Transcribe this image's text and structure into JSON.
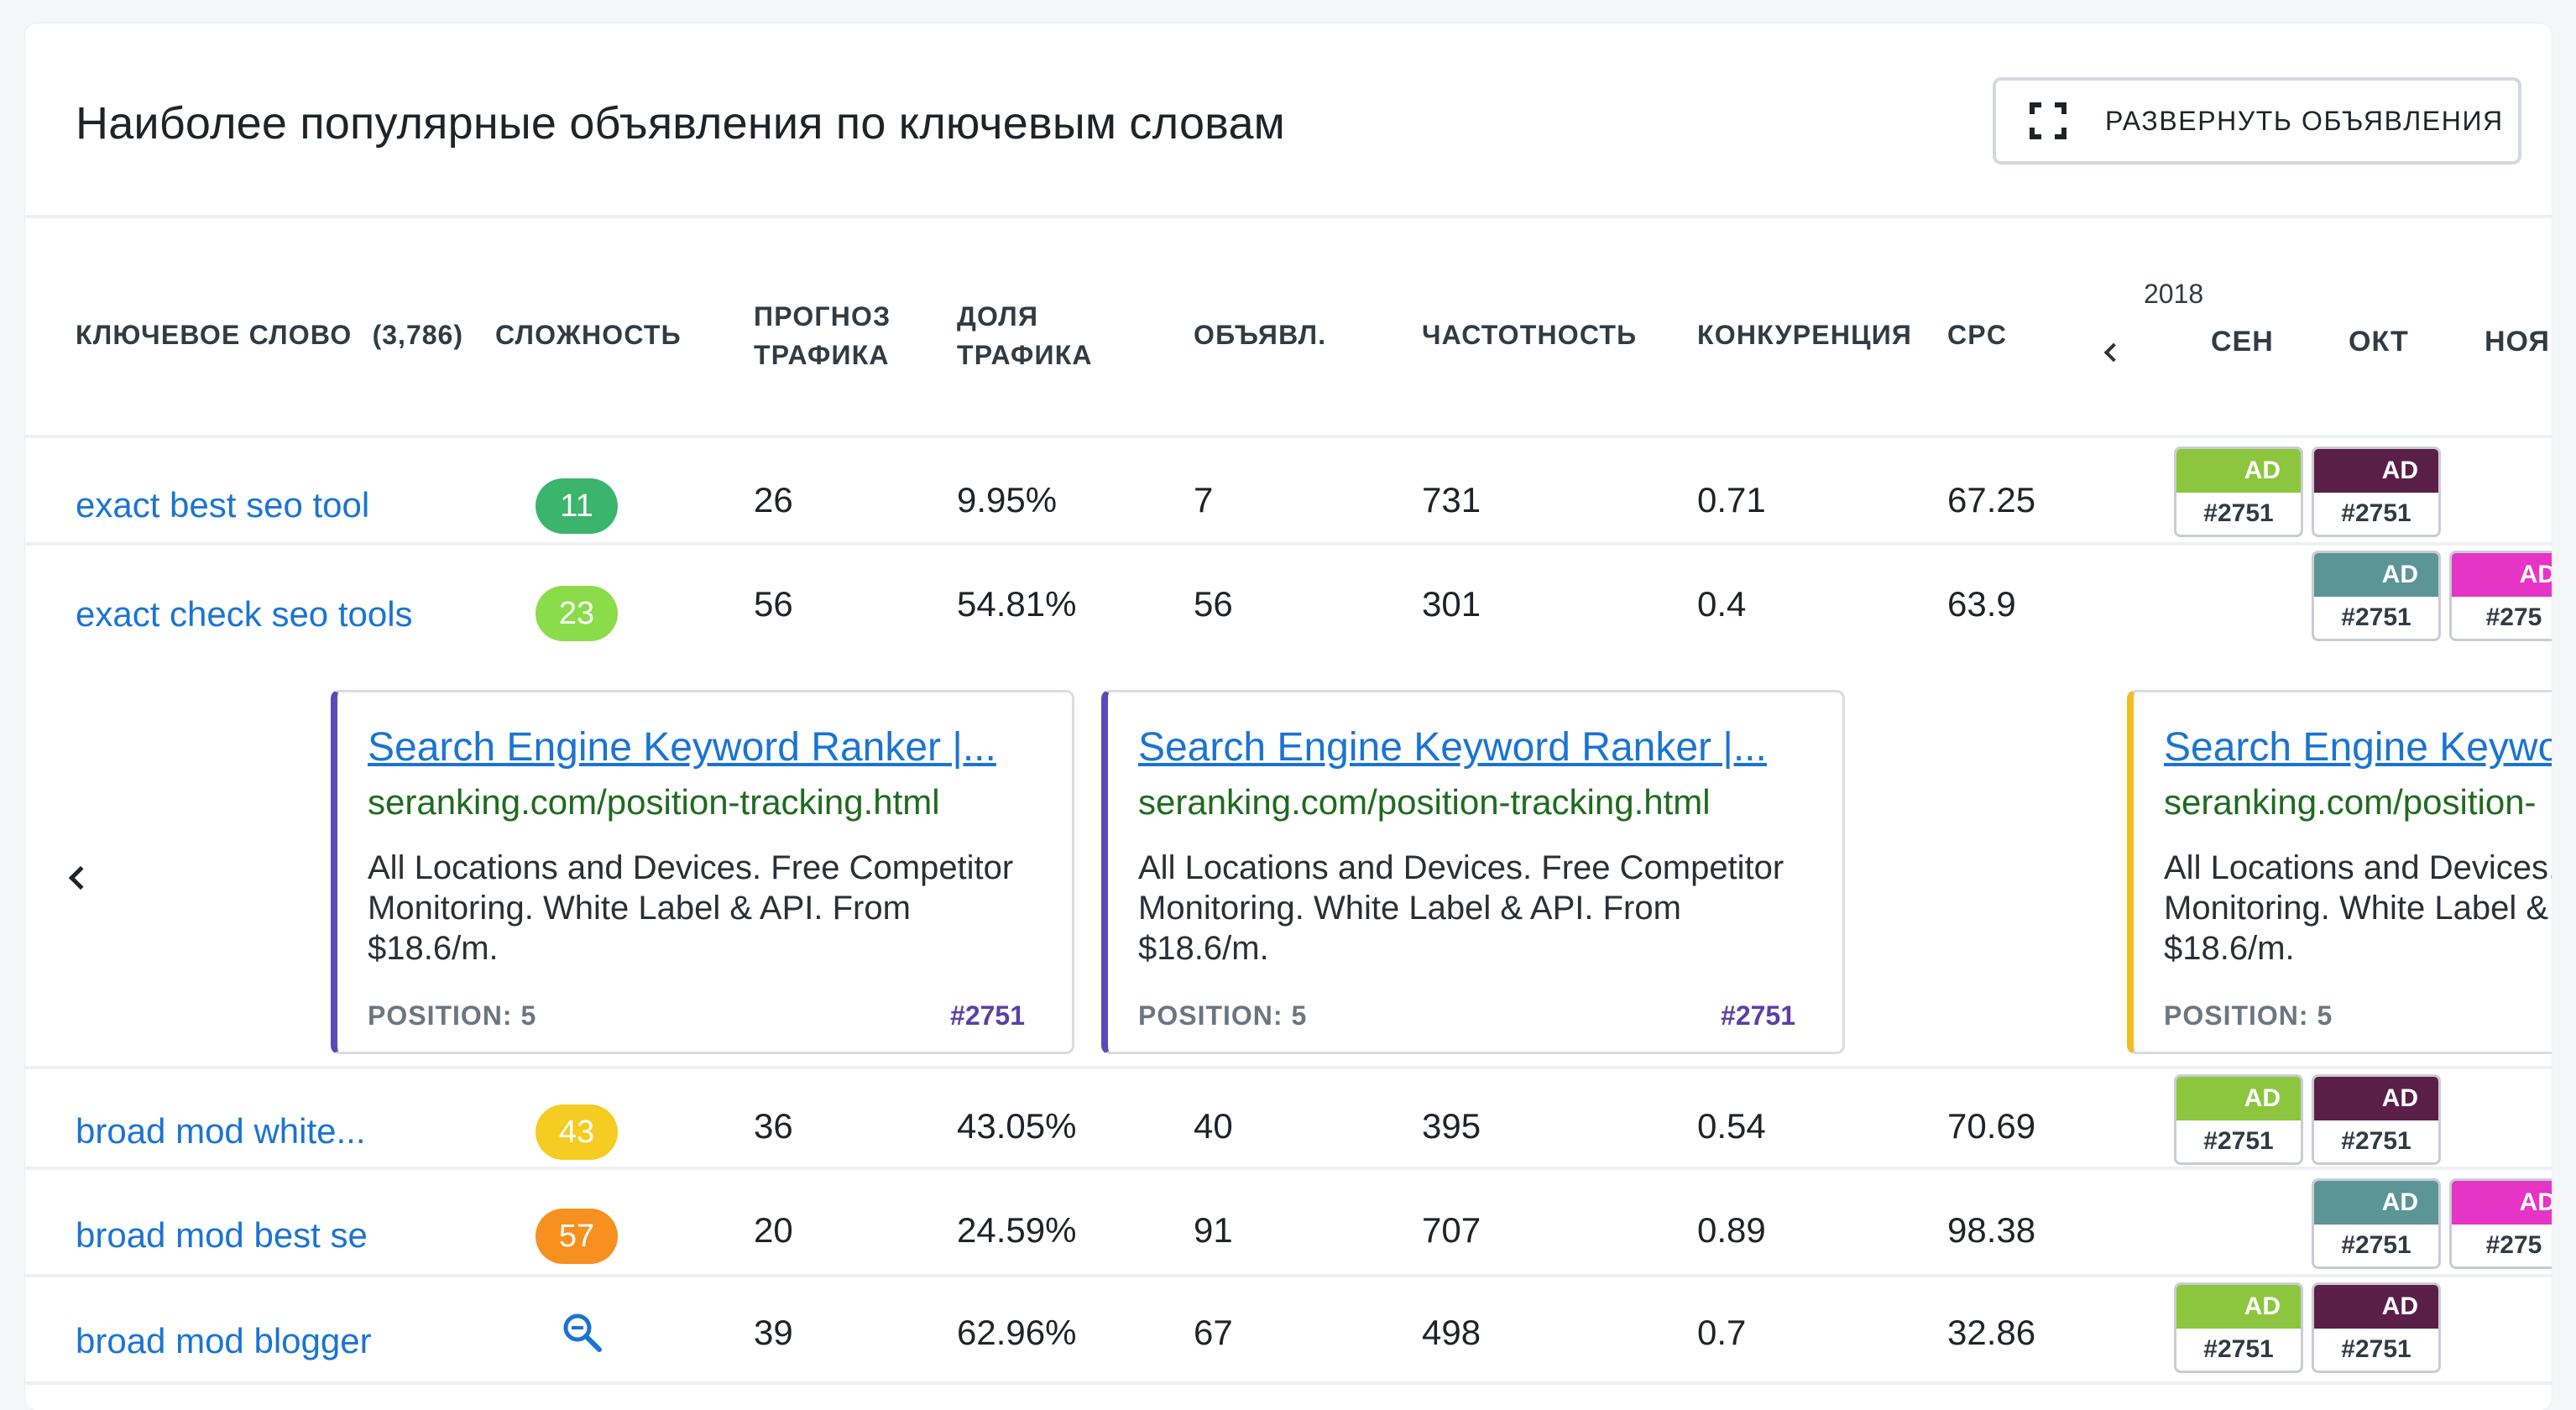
{
  "header": {
    "title": "Наиболее популярные объявления по ключевым словам",
    "expand_button": "РАЗВЕРНУТЬ ОБЪЯВЛЕНИЯ"
  },
  "columns": {
    "keyword": "КЛЮЧЕВОЕ СЛОВО",
    "keyword_count": "(3,786)",
    "difficulty": "СЛОЖНОСТЬ",
    "traffic_forecast_1": "ПРОГНОЗ",
    "traffic_forecast_2": "ТРАФИКА",
    "traffic_share_1": "ДОЛЯ",
    "traffic_share_2": "ТРАФИКА",
    "ads": "ОБЪЯВЛ.",
    "frequency": "ЧАСТОТНОСТЬ",
    "competition": "КОНКУРЕНЦИЯ",
    "cpc": "CPC",
    "year": "2018",
    "months": [
      "СЕН",
      "ОКТ",
      "НОЯ"
    ]
  },
  "colors": {
    "green_dark": "#3bb46d",
    "green_light": "#8bdc4a",
    "yellow": "#f5cc22",
    "orange": "#f7901e",
    "ad_lime": "#8cc63e",
    "ad_plum": "#5a1f47",
    "ad_teal": "#5c9596",
    "ad_magenta": "#e534c6",
    "ad_purple_border": "#5b4bb7",
    "ad_yellow_border": "#f1bd25"
  },
  "rows": [
    {
      "keyword": "exact best seo tool",
      "difficulty": "11",
      "forecast": "26",
      "share": "9.95%",
      "ads": "7",
      "frequency": "731",
      "competition": "0.71",
      "cpc": "67.25",
      "tags": [
        {
          "label": "AD",
          "id": "#2751"
        },
        {
          "label": "AD",
          "id": "#2751"
        }
      ]
    },
    {
      "keyword": "exact check seo tools",
      "difficulty": "23",
      "forecast": "56",
      "share": "54.81%",
      "ads": "56",
      "frequency": "301",
      "competition": "0.4",
      "cpc": "63.9",
      "tags": [
        {
          "label": "AD",
          "id": "#2751"
        },
        {
          "label": "AD",
          "id": "#275"
        }
      ]
    },
    {
      "keyword": "broad mod white...",
      "difficulty": "43",
      "forecast": "36",
      "share": "43.05%",
      "ads": "40",
      "frequency": "395",
      "competition": "0.54",
      "cpc": "70.69",
      "tags": [
        {
          "label": "AD",
          "id": "#2751"
        },
        {
          "label": "AD",
          "id": "#2751"
        }
      ]
    },
    {
      "keyword": "broad mod best se",
      "difficulty": "57",
      "forecast": "20",
      "share": "24.59%",
      "ads": "91",
      "frequency": "707",
      "competition": "0.89",
      "cpc": "98.38",
      "tags": [
        {
          "label": "AD",
          "id": "#2751"
        },
        {
          "label": "AD",
          "id": "#275"
        }
      ]
    },
    {
      "keyword": "broad mod blogger",
      "difficulty_icon": "search-zoom-icon",
      "forecast": "39",
      "share": "62.96%",
      "ads": "67",
      "frequency": "498",
      "competition": "0.7",
      "cpc": "32.86",
      "tags": [
        {
          "label": "AD",
          "id": "#2751"
        },
        {
          "label": "AD",
          "id": "#2751"
        }
      ]
    }
  ],
  "ad_cards": [
    {
      "title": "Search Engine Keyword Ranker |...",
      "url": "seranking.com/position-tracking.html",
      "description": "All Locations and Devices. Free Competitor Monitoring. White Label & API. From $18.6/m.",
      "position": "POSITION: 5",
      "id": "#2751"
    },
    {
      "title": "Search Engine Keyword Ranker |...",
      "url": "seranking.com/position-tracking.html",
      "description": "All Locations and Devices. Free Competitor Monitoring. White Label & API. From $18.6/m.",
      "position": "POSITION: 5",
      "id": "#2751"
    },
    {
      "title": "Search Engine Keywo",
      "url": "seranking.com/position-",
      "description": "All Locations and Devices. Monitoring. White Label & $18.6/m.",
      "position": "POSITION: 5"
    }
  ]
}
